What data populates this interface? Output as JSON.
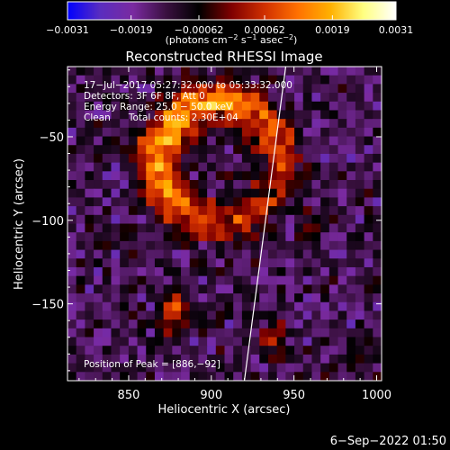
{
  "chart_data": {
    "type": "heatmap",
    "title": "Reconstructed RHESSI Image",
    "xlabel": "Heliocentric X (arcsec)",
    "ylabel": "Heliocentric Y (arcsec)",
    "xlim": [
      813,
      1003
    ],
    "ylim": [
      -196,
      -8
    ],
    "x_ticks": [
      850,
      900,
      950,
      1000
    ],
    "x_tick_labels": [
      "850",
      "900",
      "950",
      "1000"
    ],
    "y_ticks": [
      -150,
      -100,
      -50
    ],
    "y_tick_labels": [
      "−150",
      "−100",
      "−50"
    ],
    "colorbar": {
      "range": [
        -0.0031,
        0.0031
      ],
      "tick_values": [
        -0.0031,
        -0.0019,
        -0.00062,
        0.00062,
        0.0019,
        0.0031
      ],
      "tick_labels": [
        "−0.0031",
        "−0.0019",
        "−0.00062",
        "0.00062",
        "0.0019",
        "0.0031"
      ],
      "unit_text": "(photons cm",
      "unit_sup1": "−2",
      "unit_mid": " s",
      "unit_sup2": "−1",
      "unit_mid2": " asec",
      "unit_sup3": "−2",
      "unit_end": ")",
      "colormap": [
        "#0000ff",
        "#5a2dbf",
        "#7a2aa0",
        "#3a1040",
        "#000000",
        "#800000",
        "#d03000",
        "#ff7000",
        "#ffb000",
        "#ffff80",
        "#ffffff"
      ]
    },
    "annotations": [
      "17−Jul−2017 05:27:32.000 to 05:33:32.000",
      "Detectors: 3F 6F 8F, Att 0",
      "Energy Range: 25.0 − 50.0 keV",
      "Clean      Total counts: 2.30E+04"
    ],
    "peak_label": "Position of Peak = [886,−92]",
    "peak": [
      886,
      -92
    ],
    "sources": [
      {
        "kind": "ring",
        "cx": 905,
        "cy": -65,
        "radius": 36,
        "width": 13,
        "amplitude": 0.0031
      },
      {
        "kind": "blob",
        "cx": 878,
        "cy": -155,
        "sx": 9,
        "sy": 12,
        "amplitude": 0.002
      },
      {
        "kind": "blob",
        "cx": 938,
        "cy": -170,
        "sx": 6,
        "sy": 14,
        "amplitude": 0.0016
      },
      {
        "kind": "blob",
        "cx": 962,
        "cy": -105,
        "sx": 7,
        "sy": 10,
        "amplitude": 0.0012
      },
      {
        "kind": "blob",
        "cx": 832,
        "cy": -60,
        "sx": 6,
        "sy": 8,
        "amplitude": 0.0008
      }
    ],
    "limb_line": [
      [
        945,
        -8
      ],
      [
        920,
        -196
      ]
    ]
  },
  "footer": {
    "timestamp": "6−Sep−2022 01:50"
  }
}
